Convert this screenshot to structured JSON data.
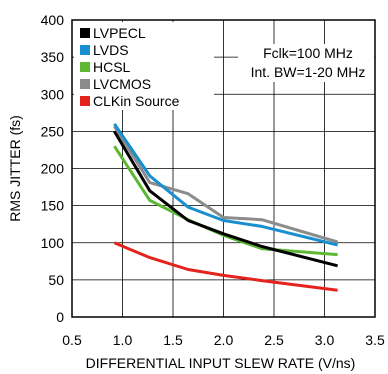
{
  "chart_data": {
    "type": "line",
    "title": "",
    "xlabel": "DIFFERENTIAL INPUT SLEW RATE (V/ns)",
    "ylabel": "RMS JITTER (fs)",
    "xlim": [
      0.5,
      3.5
    ],
    "ylim": [
      0,
      400
    ],
    "x_ticks": [
      "0.5",
      "1.0",
      "1.5",
      "2.0",
      "2.5",
      "3.0",
      "3.5"
    ],
    "y_ticks": [
      "0",
      "50",
      "100",
      "150",
      "200",
      "250",
      "300",
      "350",
      "400"
    ],
    "grid": true,
    "legend_position": "top-left",
    "annotations": [
      "Fclk=100 MHz",
      "Int. BW=1-20 MHz"
    ],
    "series": [
      {
        "name": "LVPECL",
        "color": "#000000",
        "x": [
          0.92,
          1.27,
          1.65,
          2.0,
          2.38,
          3.13
        ],
        "y": [
          250,
          170,
          130,
          112,
          95,
          69
        ]
      },
      {
        "name": "LVDS",
        "color": "#1a8fd0",
        "x": [
          0.92,
          1.27,
          1.65,
          2.0,
          2.38,
          3.13
        ],
        "y": [
          260,
          190,
          148,
          130,
          122,
          97
        ]
      },
      {
        "name": "HCSL",
        "color": "#5cb832",
        "x": [
          0.92,
          1.27,
          1.65,
          2.0,
          2.38,
          3.13
        ],
        "y": [
          230,
          157,
          131,
          110,
          92,
          84
        ]
      },
      {
        "name": "LVCMOS",
        "color": "#8c8c8c",
        "x": [
          0.92,
          1.27,
          1.65,
          2.0,
          2.38,
          3.13
        ],
        "y": [
          257,
          181,
          166,
          134,
          131,
          101
        ]
      },
      {
        "name": "CLKin Source",
        "color": "#e3231c",
        "x": [
          0.92,
          1.27,
          1.65,
          2.0,
          2.38,
          3.13
        ],
        "y": [
          100,
          80,
          64,
          56,
          49,
          36
        ]
      }
    ]
  }
}
